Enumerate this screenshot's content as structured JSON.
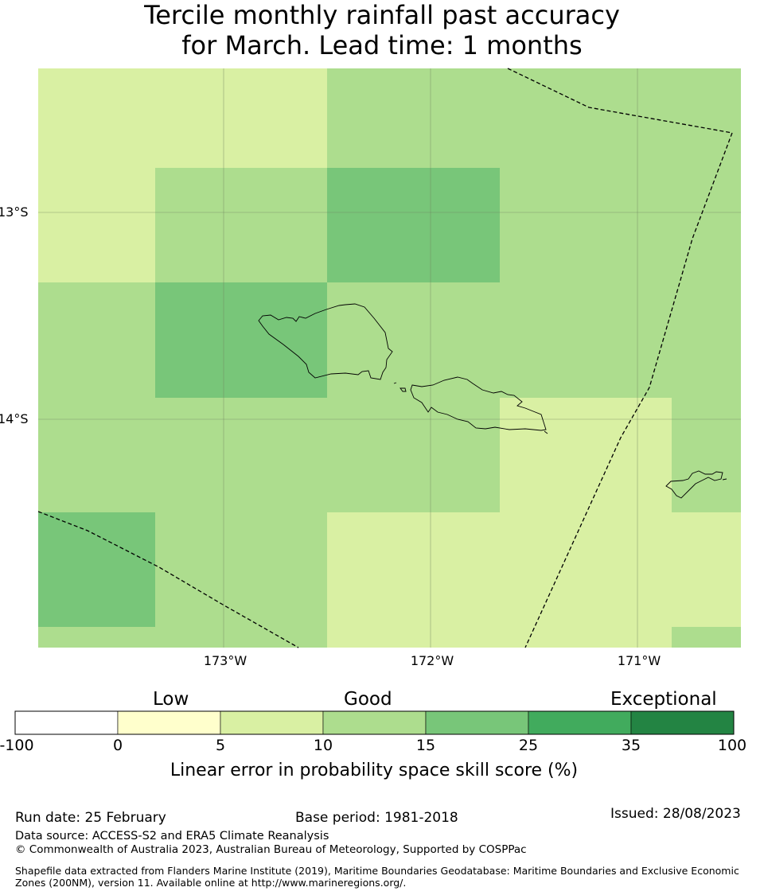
{
  "title": {
    "line1": "Tercile monthly rainfall past accuracy",
    "line2": "for March. Lead time: 1 months"
  },
  "map": {
    "lat_labels": [
      "13°S",
      "14°S"
    ],
    "lon_labels": [
      "173°W",
      "172°W",
      "171°W"
    ]
  },
  "colorbar": {
    "categories": [
      "Low",
      "Good",
      "Exceptional"
    ],
    "ticks": [
      "-100",
      "0",
      "5",
      "10",
      "15",
      "25",
      "35",
      "100"
    ],
    "colors": [
      "#ffffff",
      "#ffffcc",
      "#d9f0a3",
      "#addd8e",
      "#78c679",
      "#41ab5d",
      "#238443"
    ],
    "label": "Linear error in probability space skill score (%)"
  },
  "footer": {
    "run_date": "Run date: 25 February",
    "base_period": "Base period: 1981-2018",
    "issued": "Issued: 28/08/2023",
    "data_source": "Data source: ACCESS-S2 and ERA5 Climate Reanalysis",
    "copyright": "© Commonwealth of Australia 2023, Australian Bureau of Meteorology, Supported by COSPPac",
    "shapefile": "Shapefile data extracted from Flanders Marine Institute (2019), Maritime Boundaries Geodatabase: Maritime Boundaries and Exclusive Economic Zones (200NM), version 11. Available online at http://www.marineregions.org/."
  }
}
